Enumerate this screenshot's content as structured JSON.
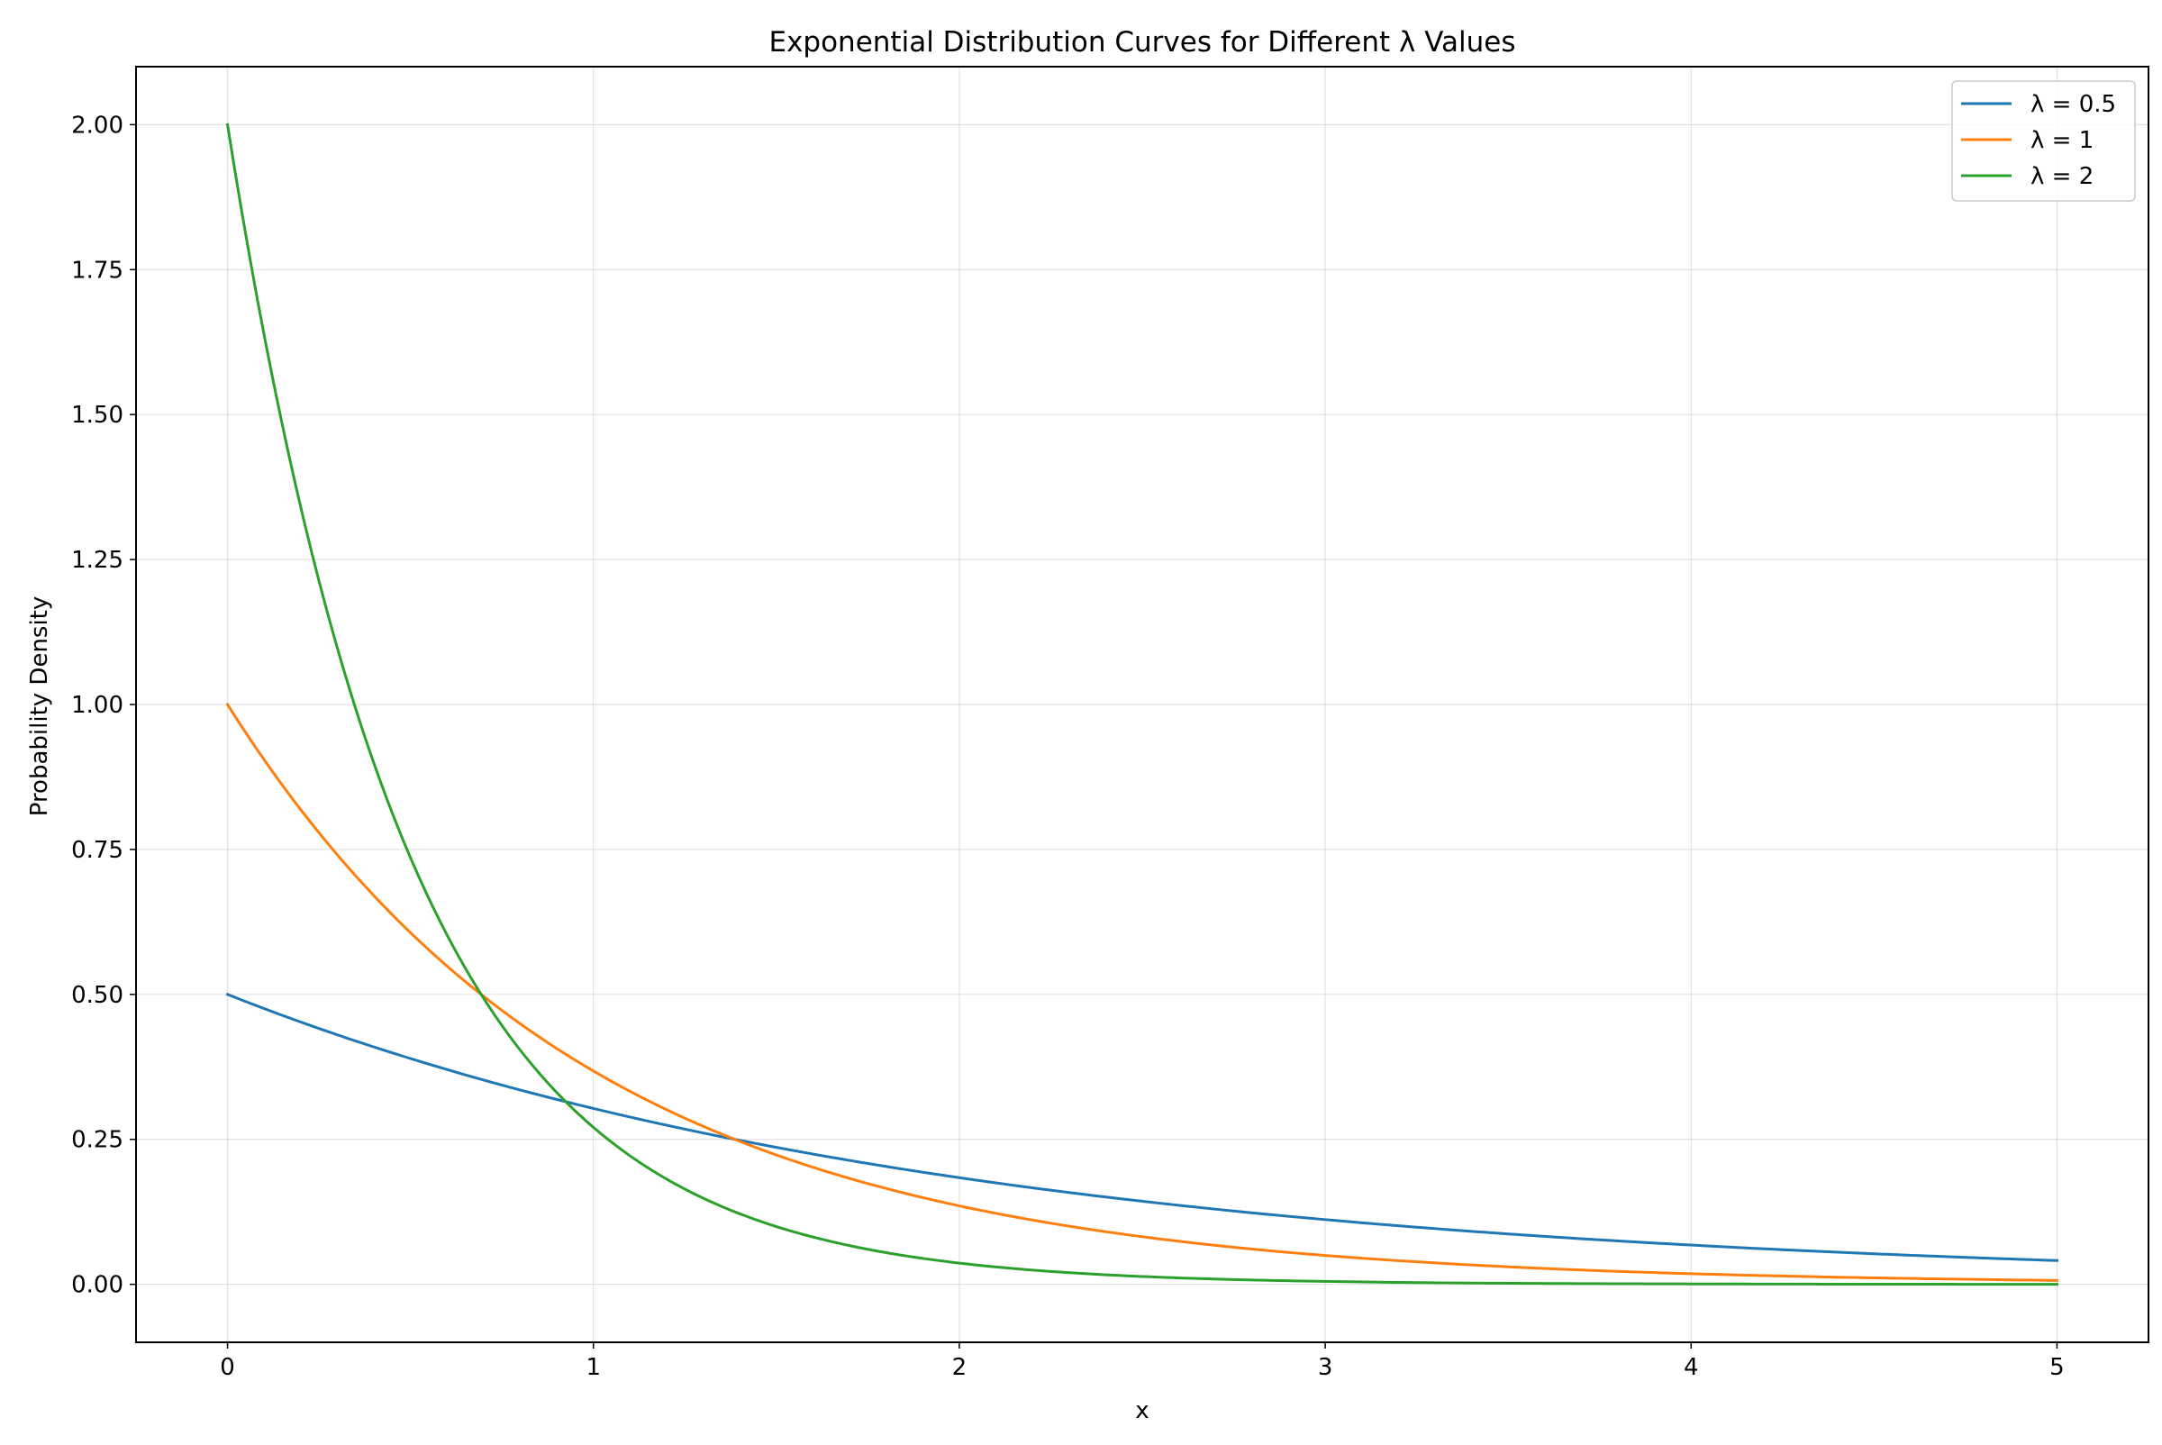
{
  "chart_data": {
    "type": "line",
    "title": "Exponential Distribution Curves for Different λ Values",
    "xlabel": "x",
    "ylabel": "Probability Density",
    "xlim": [
      -0.25,
      5.25
    ],
    "ylim": [
      -0.1,
      2.1
    ],
    "x_ticks": [
      0,
      1,
      2,
      3,
      4,
      5
    ],
    "x_tick_labels": [
      "0",
      "1",
      "2",
      "3",
      "4",
      "5"
    ],
    "y_ticks": [
      0.0,
      0.25,
      0.5,
      0.75,
      1.0,
      1.25,
      1.5,
      1.75,
      2.0
    ],
    "y_tick_labels": [
      "0.00",
      "0.25",
      "0.50",
      "0.75",
      "1.00",
      "1.25",
      "1.50",
      "1.75",
      "2.00"
    ],
    "grid": true,
    "legend_position": "top-right",
    "x": [
      0,
      0.25,
      0.5,
      0.75,
      1,
      1.25,
      1.5,
      1.75,
      2,
      2.25,
      2.5,
      2.75,
      3,
      3.25,
      3.5,
      3.75,
      4,
      4.25,
      4.5,
      4.75,
      5
    ],
    "series": [
      {
        "name": "λ = 0.5",
        "color": "#1f77b4",
        "values": [
          0.5,
          0.4412,
          0.3894,
          0.3436,
          0.3033,
          0.2676,
          0.2362,
          0.2084,
          0.1839,
          0.1623,
          0.1433,
          0.1264,
          0.1116,
          0.0985,
          0.0869,
          0.0767,
          0.0677,
          0.0597,
          0.0527,
          0.0465,
          0.041
        ]
      },
      {
        "name": "λ = 1",
        "color": "#ff7f0e",
        "values": [
          1.0,
          0.7788,
          0.6065,
          0.4724,
          0.3679,
          0.2865,
          0.2231,
          0.1738,
          0.1353,
          0.1054,
          0.0821,
          0.0639,
          0.0498,
          0.0388,
          0.0302,
          0.0235,
          0.0183,
          0.0143,
          0.0111,
          0.0087,
          0.0067
        ]
      },
      {
        "name": "λ = 2",
        "color": "#2ca02c",
        "values": [
          2.0,
          1.2131,
          0.7358,
          0.4463,
          0.2707,
          0.1642,
          0.0996,
          0.0604,
          0.0366,
          0.0222,
          0.0135,
          0.0082,
          0.005,
          0.003,
          0.0018,
          0.0011,
          0.0007,
          0.0004,
          0.0002,
          0.0001,
          0.0001
        ]
      }
    ]
  }
}
